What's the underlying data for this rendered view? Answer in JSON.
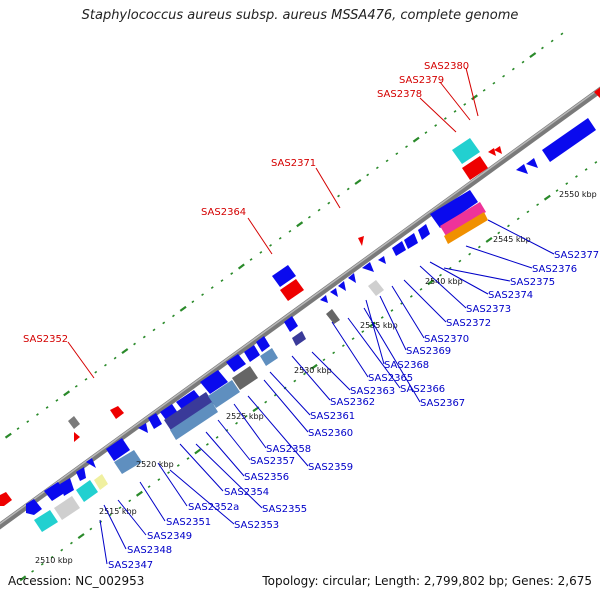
{
  "title": "Staphylococcus aureus subsp. aureus MSSA476, complete genome",
  "footer": {
    "accession": "Accession: NC_002953",
    "summary": "Topology: circular; Length: 2,799,802 bp; Genes: 2,675"
  },
  "colors": {
    "backbone": "#8c8c8c",
    "gene_blue": "#0a0aee",
    "gene_red": "#ee0000",
    "gene_cyan": "#22d0d0",
    "gene_gray": "#cfcfcf",
    "gene_dark": "#666666",
    "gene_steel": "#5f8fbf",
    "gene_navy": "#3a3a99",
    "gene_pink": "#ee3399",
    "gene_orange": "#f09000",
    "gene_yellow": "#f0f0a0",
    "label_blue": "#0000c8",
    "label_red": "#d40000",
    "tick_green": "#2a8a2a"
  },
  "scale_labels": [
    "2510 kbp",
    "2515 kbp",
    "2520 kbp",
    "2525 kbp",
    "2530 kbp",
    "2535 kbp",
    "2540 kbp",
    "2545 kbp",
    "2550 kbp"
  ],
  "blue_labels": [
    "SAS2347",
    "SAS2348",
    "SAS2349",
    "SAS2351",
    "SAS2352a",
    "SAS2353",
    "SAS2354",
    "SAS2355",
    "SAS2356",
    "SAS2357",
    "SAS2358",
    "SAS2359",
    "SAS2360",
    "SAS2361",
    "SAS2362",
    "SAS2363",
    "SAS2365",
    "SAS2366",
    "SAS2367",
    "SAS2368",
    "SAS2369",
    "SAS2370",
    "SAS2372",
    "SAS2373",
    "SAS2374",
    "SAS2375",
    "SAS2376",
    "SAS2377"
  ],
  "red_labels": [
    "SAS2352",
    "SAS2364",
    "SAS2371",
    "SAS2378",
    "SAS2379",
    "SAS2380"
  ]
}
